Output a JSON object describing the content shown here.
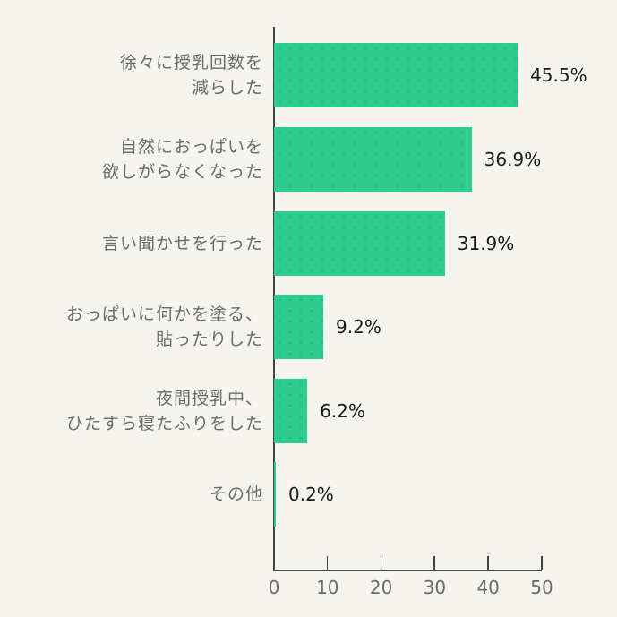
{
  "chart_data": {
    "type": "bar",
    "orientation": "horizontal",
    "title": "",
    "xlabel": "",
    "ylabel": "",
    "categories": [
      "徐々に授乳回数を\n減らした",
      "自然におっぱいを\n欲しがらなくなった",
      "言い聞かせを行った",
      "おっぱいに何かを塗る、\n貼ったりした",
      "夜間授乳中、\nひたすら寝たふりをした",
      "その他"
    ],
    "values": [
      45.5,
      36.9,
      31.9,
      9.2,
      6.2,
      0.2
    ],
    "value_labels": [
      "45.5%",
      "36.9%",
      "31.9%",
      "9.2%",
      "6.2%",
      "0.2%"
    ],
    "xlim": [
      0,
      50
    ],
    "xticks": [
      0,
      10,
      20,
      30,
      40,
      50
    ],
    "grid": false,
    "legend": null,
    "bar_color": "#2ecb91"
  },
  "labels": [
    {
      "line1": "徐々に授乳回数を",
      "line2": "減らした"
    },
    {
      "line1": "自然におっぱいを",
      "line2": "欲しがらなくなった"
    },
    {
      "line1": "言い聞かせを行った",
      "line2": ""
    },
    {
      "line1": "おっぱいに何かを塗る、",
      "line2": "貼ったりした"
    },
    {
      "line1": "夜間授乳中、",
      "line2": "ひたすら寝たふりをした"
    },
    {
      "line1": "その他",
      "line2": ""
    }
  ],
  "ticks": [
    "0",
    "10",
    "20",
    "30",
    "40",
    "50"
  ]
}
